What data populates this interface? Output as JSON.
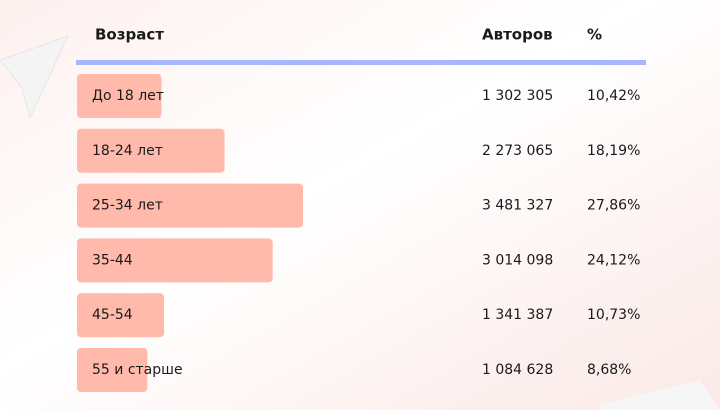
{
  "chart_data": {
    "type": "bar",
    "x_label": "Возраст",
    "categories": [
      "До 18 лет",
      "18-24 лет",
      "25-34 лет",
      "35-44",
      "45-54",
      "55 и старше"
    ],
    "series": [
      {
        "name": "Авторов",
        "values": [
          1302305,
          2273065,
          3481327,
          3014098,
          1341387,
          1084628
        ],
        "value_labels": [
          "1 302 305",
          "2 273 065",
          "3 481 327",
          "3 014 098",
          "1 341 387",
          "1 084 628"
        ]
      },
      {
        "name": "%",
        "color": "#ffbaab",
        "values": [
          10.42,
          18.19,
          27.86,
          24.12,
          10.73,
          8.68
        ],
        "value_labels": [
          "10,42%",
          "18,19%",
          "27,86%",
          "24,12%",
          "10,73%",
          "8,68%"
        ]
      }
    ]
  }
}
